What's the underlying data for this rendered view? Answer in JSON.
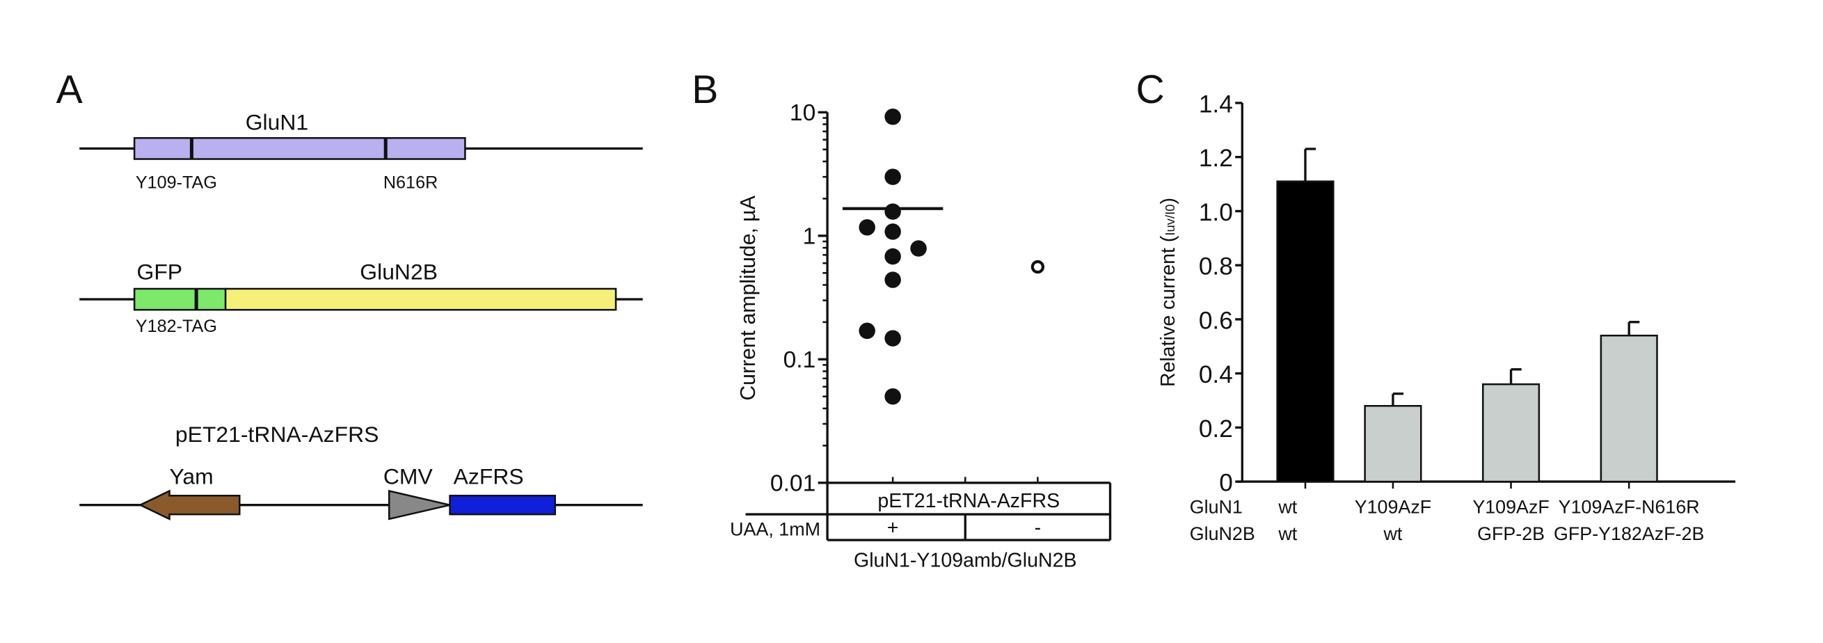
{
  "panel_a": {
    "letter": "A",
    "gluN1": {
      "title": "GluN1",
      "mut1": "Y109-TAG",
      "mut2": "N616R",
      "color": "#b9b0f0"
    },
    "gluN2B": {
      "gfp": "GFP",
      "title": "GluN2B",
      "mut": "Y182-TAG",
      "gfp_color": "#7de86a",
      "color": "#f5f07a"
    },
    "plasmid": {
      "title": "pET21-tRNA-AzFRS",
      "yam": "Yam",
      "cmv": "CMV",
      "azfrs": "AzFRS",
      "yam_color": "#8b5a2b",
      "cmv_color": "#888888",
      "azfrs_color": "#1020d8"
    }
  },
  "chart_data": [
    {
      "panel": "B",
      "type": "scatter",
      "ylabel": "Current amplitude, µA",
      "yscale": "log",
      "ylim": [
        0.01,
        10
      ],
      "yticks": [
        "10",
        "1",
        "0.1",
        "0.01"
      ],
      "table": {
        "row1": "pET21-tRNA-AzFRS",
        "row2_label": "UAA, 1mM",
        "row2_values": [
          "+",
          "-"
        ],
        "xlabel": "GluN1-Y109amb/GluN2B"
      },
      "series": [
        {
          "name": "+",
          "filled": true,
          "values": [
            9.2,
            3.0,
            1.57,
            1.17,
            1.08,
            0.79,
            0.68,
            0.44,
            0.17,
            0.148,
            0.05
          ],
          "offsets": [
            0,
            0,
            0,
            -1,
            0,
            1,
            0,
            0,
            -1,
            0,
            0
          ],
          "mean": 1.66
        },
        {
          "name": "-",
          "filled": false,
          "values": [
            0.56
          ],
          "offsets": [
            0
          ]
        }
      ]
    },
    {
      "panel": "C",
      "type": "bar",
      "ylabel_main": "Relative current (",
      "ylabel_sub": "Iuv/I0",
      "ylabel_end": ")",
      "ylim": [
        0,
        1.4
      ],
      "yticks": [
        "0",
        "0.2",
        "0.4",
        "0.6",
        "0.8",
        "1.0",
        "1.2",
        "1.4"
      ],
      "row_labels": [
        "GluN1",
        "GluN2B"
      ],
      "categories": [
        {
          "gluN1": "wt",
          "gluN2B": "wt"
        },
        {
          "gluN1": "Y109AzF",
          "gluN2B": "wt"
        },
        {
          "gluN1": "Y109AzF",
          "gluN2B": "GFP-2B"
        },
        {
          "gluN1": "Y109AzF-N616R",
          "gluN2B": "GFP-Y182AzF-2B"
        }
      ],
      "values": [
        1.11,
        0.28,
        0.36,
        0.54
      ],
      "errors": [
        0.12,
        0.045,
        0.055,
        0.05
      ],
      "colors": [
        "#000000",
        "#c8cfcc",
        "#c8cfcc",
        "#c8cfcc"
      ]
    }
  ],
  "letters": {
    "b": "B",
    "c": "C"
  }
}
